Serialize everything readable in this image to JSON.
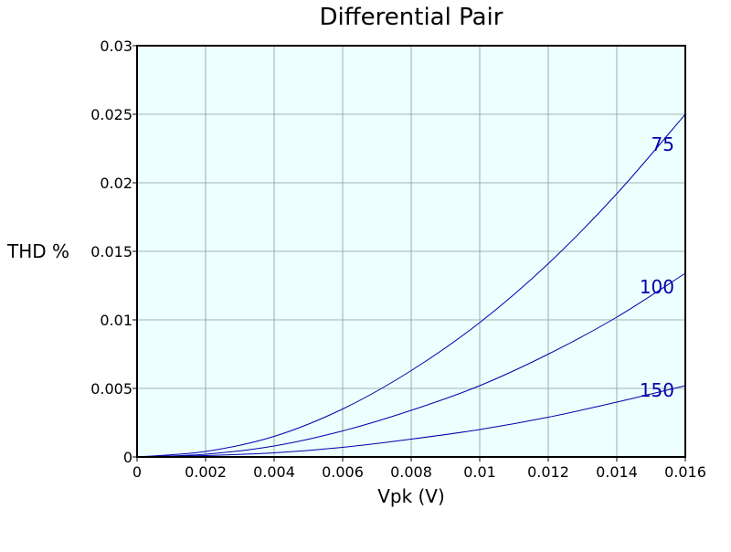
{
  "chart_data": {
    "type": "line",
    "title": "Differential Pair",
    "xlabel": "Vpk (V)",
    "ylabel": "THD %",
    "xlim": [
      0,
      0.016
    ],
    "ylim": [
      0,
      0.03
    ],
    "grid": true,
    "x_ticks": [
      0,
      0.002,
      0.004,
      0.006,
      0.008,
      0.01,
      0.012,
      0.014,
      0.016
    ],
    "x_tick_labels": [
      "0",
      "0.002",
      "0.004",
      "0.006",
      "0.008",
      "0.01",
      "0.012",
      "0.014",
      "0.016"
    ],
    "y_ticks": [
      0,
      0.005,
      0.01,
      0.015,
      0.02,
      0.025,
      0.03
    ],
    "y_tick_labels": [
      "0",
      "0.005",
      "0.01",
      "0.015",
      "0.02",
      "0.025",
      "0.03"
    ],
    "series": [
      {
        "name": "75",
        "label": "75",
        "x": [
          0,
          0.002,
          0.004,
          0.006,
          0.008,
          0.01,
          0.012,
          0.014,
          0.016
        ],
        "y": [
          0,
          0.0004,
          0.0015,
          0.0035,
          0.0063,
          0.0098,
          0.0141,
          0.0192,
          0.025
        ]
      },
      {
        "name": "100",
        "label": "100",
        "x": [
          0,
          0.002,
          0.004,
          0.006,
          0.008,
          0.01,
          0.012,
          0.014,
          0.016
        ],
        "y": [
          0,
          0.0002,
          0.0008,
          0.0019,
          0.0034,
          0.0052,
          0.0075,
          0.0102,
          0.0134
        ]
      },
      {
        "name": "150",
        "label": "150",
        "x": [
          0,
          0.002,
          0.004,
          0.006,
          0.008,
          0.01,
          0.012,
          0.014,
          0.016
        ],
        "y": [
          0,
          0.0001,
          0.0003,
          0.0007,
          0.0013,
          0.002,
          0.0029,
          0.004,
          0.0052
        ]
      }
    ]
  },
  "colors": {
    "plot_background": "#eeffff",
    "series_line": "#0000aa",
    "series_label": "#0000aa",
    "frame": "#000000",
    "grid": "#8a9a9a"
  }
}
